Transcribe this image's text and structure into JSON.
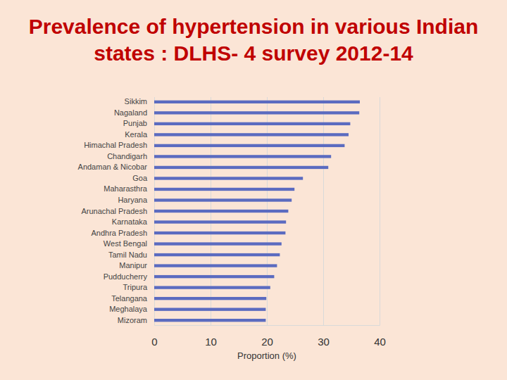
{
  "chart_data": {
    "type": "bar",
    "orientation": "horizontal",
    "title": "Prevalence of hypertension in various Indian states : DLHS- 4 survey 2012-14",
    "x_label": "Proportion (%)",
    "categories": [
      "Sikkim",
      "Nagaland",
      "Punjab",
      "Kerala",
      "Himachal Pradesh",
      "Chandigarh",
      "Andaman & Nicobar",
      "Goa",
      "Maharasthra",
      "Haryana",
      "Arunachal Pradesh",
      "Karnataka",
      "Andhra Pradesh",
      "West Bengal",
      "Tamil Nadu",
      "Manipur",
      "Pudducherry",
      "Tripura",
      "Telangana",
      "Meghalaya",
      "Mizoram"
    ],
    "values": [
      36.5,
      36.4,
      34.8,
      34.5,
      33.8,
      31.4,
      30.9,
      26.4,
      24.9,
      24.4,
      23.8,
      23.4,
      23.3,
      22.6,
      22.3,
      21.8,
      21.3,
      20.6,
      19.9,
      19.8,
      19.8
    ],
    "color": "#5b6bc0",
    "xlim": [
      0,
      40
    ],
    "xticks": [
      0,
      10,
      20,
      30,
      40
    ],
    "grid": true
  }
}
